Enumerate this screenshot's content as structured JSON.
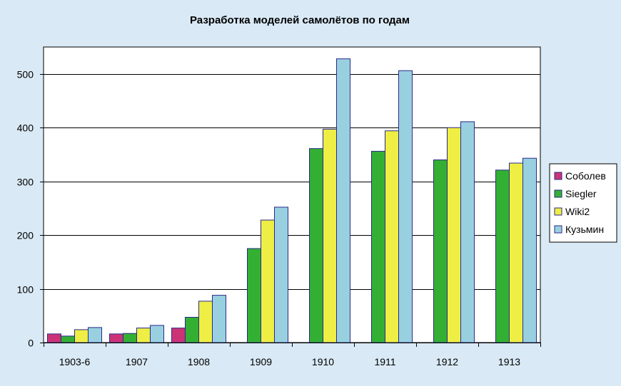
{
  "chart_data": {
    "type": "bar",
    "title": "Разработка моделей самолётов по годам",
    "xlabel": "",
    "ylabel": "",
    "ylim": [
      0,
      550
    ],
    "yticks": [
      0,
      100,
      200,
      300,
      400,
      500
    ],
    "grid": true,
    "legend_position": "right",
    "categories": [
      "1903-6",
      "1907",
      "1908",
      "1909",
      "1910",
      "1911",
      "1912",
      "1913"
    ],
    "series": [
      {
        "name": "Соболев",
        "color": "#cc3377",
        "values": [
          16,
          16,
          27,
          null,
          null,
          null,
          null,
          null
        ]
      },
      {
        "name": "Siegler",
        "color": "#33b033",
        "values": [
          12,
          17,
          47,
          175,
          361,
          356,
          340,
          321
        ]
      },
      {
        "name": "Wiki2",
        "color": "#eeee44",
        "values": [
          24,
          27,
          77,
          228,
          397,
          394,
          400,
          334
        ]
      },
      {
        "name": "Кузьмин",
        "color": "#99d0e0",
        "values": [
          28,
          32,
          88,
          252,
          528,
          506,
          411,
          343
        ]
      }
    ]
  }
}
